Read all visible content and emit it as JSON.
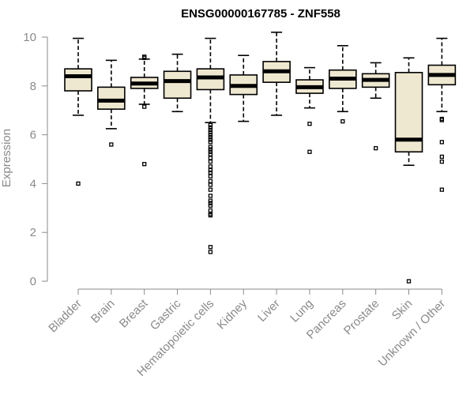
{
  "chart_data": {
    "type": "boxplot",
    "title": "ENSG00000167785 - ZNF558",
    "ylabel": "Expression",
    "xlabel": "",
    "ylim": [
      0,
      10
    ],
    "yticks": [
      0,
      2,
      4,
      6,
      8,
      10
    ],
    "colors": {
      "box_fill": "#efe8d0",
      "stroke": "#000000",
      "axis": "#8a8a8a"
    },
    "categories": [
      "Bladder",
      "Brain",
      "Breast",
      "Gastric",
      "Hematopoietic cells",
      "Kidney",
      "Liver",
      "Lung",
      "Pancreas",
      "Prostate",
      "Skin",
      "Unknown / Other"
    ],
    "boxes": [
      {
        "min": 6.8,
        "q1": 7.8,
        "median": 8.4,
        "q3": 8.7,
        "max": 9.95,
        "outliers": [
          4.0
        ]
      },
      {
        "min": 6.25,
        "q1": 7.05,
        "median": 7.4,
        "q3": 7.95,
        "max": 9.05,
        "outliers": [
          5.6
        ]
      },
      {
        "min": 7.25,
        "q1": 7.9,
        "median": 8.1,
        "q3": 8.35,
        "max": 9.1,
        "outliers": [
          9.2,
          9.15,
          7.15,
          4.8
        ]
      },
      {
        "min": 6.95,
        "q1": 7.5,
        "median": 8.2,
        "q3": 8.6,
        "max": 9.3,
        "outliers": []
      },
      {
        "min": 6.5,
        "q1": 7.85,
        "median": 8.35,
        "q3": 8.7,
        "max": 9.95,
        "outliers": [
          6.4,
          6.3,
          6.2,
          6.1,
          6.0,
          5.9,
          5.8,
          5.7,
          5.5,
          5.4,
          5.3,
          5.2,
          5.05,
          4.9,
          4.7,
          4.55,
          4.45,
          4.3,
          4.1,
          3.95,
          3.75,
          3.5,
          3.3,
          3.2,
          3.1,
          2.9,
          2.75,
          2.7,
          1.4,
          1.2
        ]
      },
      {
        "min": 6.55,
        "q1": 7.65,
        "median": 8.0,
        "q3": 8.45,
        "max": 9.25,
        "outliers": []
      },
      {
        "min": 6.8,
        "q1": 8.15,
        "median": 8.6,
        "q3": 9.0,
        "max": 10.2,
        "outliers": []
      },
      {
        "min": 7.1,
        "q1": 7.7,
        "median": 7.95,
        "q3": 8.25,
        "max": 8.75,
        "outliers": [
          6.45,
          5.3
        ]
      },
      {
        "min": 6.95,
        "q1": 7.9,
        "median": 8.3,
        "q3": 8.65,
        "max": 9.65,
        "outliers": [
          6.55
        ]
      },
      {
        "min": 7.5,
        "q1": 7.95,
        "median": 8.25,
        "q3": 8.5,
        "max": 8.95,
        "outliers": [
          5.45
        ]
      },
      {
        "min": 4.75,
        "q1": 5.3,
        "median": 5.8,
        "q3": 8.55,
        "max": 9.15,
        "outliers": [
          0.0
        ]
      },
      {
        "min": 6.95,
        "q1": 8.05,
        "median": 8.45,
        "q3": 8.85,
        "max": 9.95,
        "outliers": [
          6.65,
          6.6,
          5.7,
          5.1,
          4.9,
          3.75
        ]
      }
    ]
  }
}
